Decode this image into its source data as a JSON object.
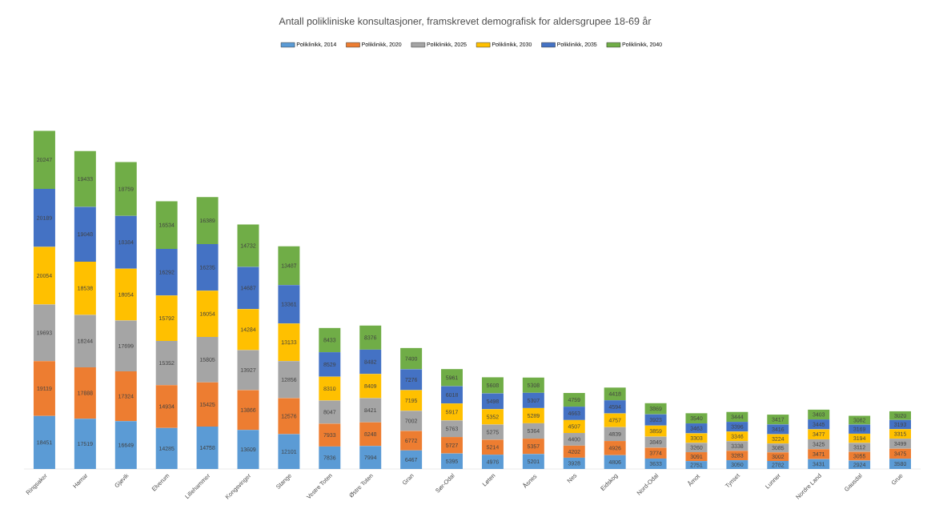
{
  "chart_data": {
    "type": "bar",
    "stacked": true,
    "title": "Antall polikliniske konsultasjoner, framskrevet demografisk for aldersgrupee 18-69 år",
    "legend": "top",
    "data_labels": true,
    "categories": [
      "Ringsaker",
      "Hamar",
      "Gjøvik",
      "Elverum",
      "Lillehammer",
      "Kongsvinger",
      "Stange",
      "Vestre Toten",
      "Østre Toten",
      "Gran",
      "Sør-Odal",
      "Løten",
      "Åsnes",
      "Nes",
      "Eidskog",
      "Nord-Odal",
      "Åmot",
      "Tynset",
      "Lunner",
      "Nordre Land",
      "Gausdal",
      "Grue"
    ],
    "series": [
      {
        "name": "Poliklinikk, 2014",
        "color": "#5b9bd5",
        "values": [
          18451,
          17519,
          16649,
          14285,
          14758,
          13609,
          12101,
          7836,
          7994,
          6467,
          5395,
          4976,
          5201,
          3928,
          4806,
          3633,
          2751,
          3050,
          2782,
          3431,
          2924,
          3580
        ]
      },
      {
        "name": "Poliklinikk, 2020",
        "color": "#ed7d31",
        "values": [
          19119,
          17888,
          17324,
          14934,
          15425,
          13866,
          12576,
          7933,
          8248,
          6772,
          5727,
          5214,
          5357,
          4202,
          4926,
          3774,
          3091,
          3283,
          3002,
          3471,
          3055,
          3475
        ]
      },
      {
        "name": "Poliklinikk, 2025",
        "color": "#a5a5a5",
        "values": [
          19693,
          18244,
          17699,
          15352,
          15805,
          13927,
          12856,
          8047,
          8421,
          7002,
          5763,
          5275,
          5364,
          4400,
          4839,
          3849,
          3260,
          3338,
          3085,
          3425,
          3112,
          3499
        ]
      },
      {
        "name": "Poliklinikk, 2030",
        "color": "#ffc000",
        "values": [
          20054,
          18538,
          18054,
          15792,
          16054,
          14284,
          13133,
          8310,
          8409,
          7195,
          5917,
          5352,
          5289,
          4507,
          4757,
          3859,
          3303,
          3346,
          3224,
          3477,
          3194,
          3315
        ]
      },
      {
        "name": "Poliklinikk, 2035",
        "color": "#4472c4",
        "values": [
          20189,
          19048,
          18384,
          16292,
          16235,
          14687,
          13361,
          8529,
          8482,
          7276,
          6018,
          5498,
          5307,
          4663,
          4594,
          3923,
          3463,
          3396,
          3416,
          3445,
          3169,
          3193
        ]
      },
      {
        "name": "Poliklinikk, 2040",
        "color": "#70ad47",
        "values": [
          20247,
          19433,
          18759,
          16534,
          16389,
          14732,
          13487,
          8433,
          8376,
          7400,
          5961,
          5608,
          5308,
          4759,
          4418,
          3869,
          3540,
          3444,
          3417,
          3403,
          3062,
          3020
        ]
      }
    ]
  }
}
